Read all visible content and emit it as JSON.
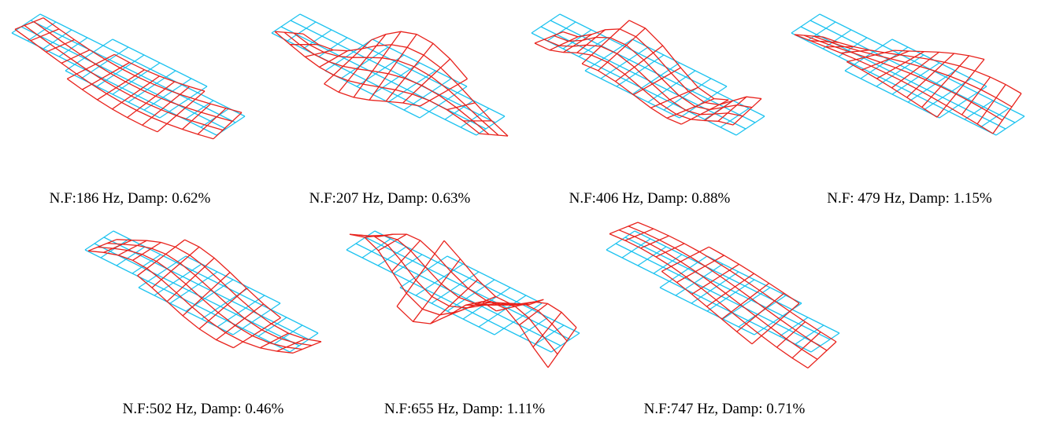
{
  "panels": [
    {
      "caption": "N.F:186 Hz, Damp: 0.62%"
    },
    {
      "caption": "N.F:207 Hz, Damp: 0.63%"
    },
    {
      "caption": "N.F:406 Hz, Damp: 0.88%"
    },
    {
      "caption": "N.F: 479 Hz, Damp: 1.15%"
    },
    {
      "caption": "N.F:502 Hz, Damp: 0.46%"
    },
    {
      "caption": "N.F:655 Hz, Damp: 1.11%"
    },
    {
      "caption": "N.F:747 Hz, Damp: 0.71%"
    }
  ]
}
